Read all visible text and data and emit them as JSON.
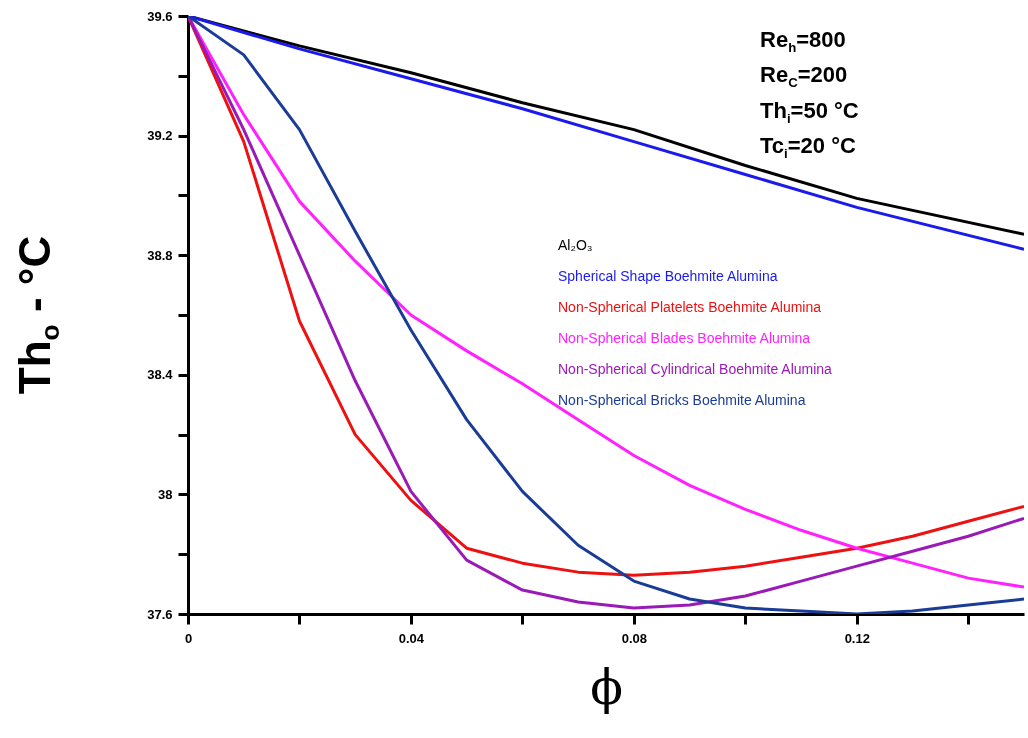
{
  "chart_data": {
    "type": "line",
    "xlabel": "ϕ",
    "ylabel": "Th$_{o}$ - °C",
    "x": [
      0,
      0.01,
      0.02,
      0.03,
      0.04,
      0.05,
      0.06,
      0.07,
      0.08,
      0.09,
      0.1,
      0.11,
      0.12,
      0.13,
      0.14,
      0.15
    ],
    "series": [
      {
        "name": "Al₂O₃",
        "color": "#000000",
        "x": [
          0,
          0.02,
          0.04,
          0.06,
          0.08,
          0.1,
          0.12,
          0.15
        ],
        "values": [
          39.6,
          39.5,
          39.41,
          39.31,
          39.22,
          39.1,
          38.99,
          38.87
        ]
      },
      {
        "name": "Spherical Shape  Boehmite Alumina",
        "color": "#1a1aee",
        "x": [
          0,
          0.02,
          0.04,
          0.06,
          0.08,
          0.1,
          0.12,
          0.15
        ],
        "values": [
          39.6,
          39.49,
          39.39,
          39.29,
          39.18,
          39.07,
          38.96,
          38.82
        ]
      },
      {
        "name": "Non-Spherical Platelets Boehmite Alumina",
        "color": "#ee1111",
        "values": [
          39.6,
          39.18,
          38.58,
          38.2,
          37.98,
          37.82,
          37.77,
          37.74,
          37.73,
          37.74,
          37.76,
          37.79,
          37.82,
          37.86,
          37.91,
          37.96
        ]
      },
      {
        "name": "Non-Spherical Blades Boehmite Alumina",
        "color": "#ff22ff",
        "values": [
          39.6,
          39.27,
          38.98,
          38.78,
          38.6,
          38.48,
          38.37,
          38.25,
          38.13,
          38.03,
          37.95,
          37.88,
          37.82,
          37.77,
          37.72,
          37.69
        ]
      },
      {
        "name": "Non-Spherical Cylindrical Boehmite Alumina",
        "color": "#9a1ab8",
        "values": [
          39.6,
          39.22,
          38.8,
          38.38,
          38.01,
          37.78,
          37.68,
          37.64,
          37.62,
          37.63,
          37.66,
          37.71,
          37.76,
          37.81,
          37.86,
          37.92
        ]
      },
      {
        "name": "Non-Spherical Bricks Boehmite Alumina",
        "color": "#1a3c96",
        "values": [
          39.6,
          39.47,
          39.22,
          38.88,
          38.55,
          38.25,
          38.01,
          37.83,
          37.71,
          37.65,
          37.62,
          37.61,
          37.6,
          37.61,
          37.63,
          37.65
        ]
      }
    ],
    "xlim": [
      0,
      0.15
    ],
    "ylim": [
      37.6,
      39.6
    ],
    "xticks": [
      0,
      {
        "value": 0.02,
        "label": null
      },
      0.04,
      {
        "value": 0.06,
        "label": null
      },
      0.08,
      {
        "value": 0.1,
        "label": null
      },
      0.12,
      {
        "value": 0.14,
        "label": null
      }
    ],
    "yticks": [
      37.6,
      {
        "value": 37.8,
        "label": null
      },
      38,
      {
        "value": 38.2,
        "label": null
      },
      38.4,
      {
        "value": 38.6,
        "label": null
      },
      38.8,
      {
        "value": 39,
        "label": null
      },
      39.2,
      {
        "value": 39.4,
        "label": null
      },
      39.6
    ],
    "grid": false,
    "legend": "right",
    "line_style": "solid",
    "marker": "none",
    "annotations": [
      "Re$_{h}$=800",
      "Re$_{C}$=200",
      "Th$_{i}$=50 °C",
      "Tc$_{i}$=20 °C"
    ]
  }
}
